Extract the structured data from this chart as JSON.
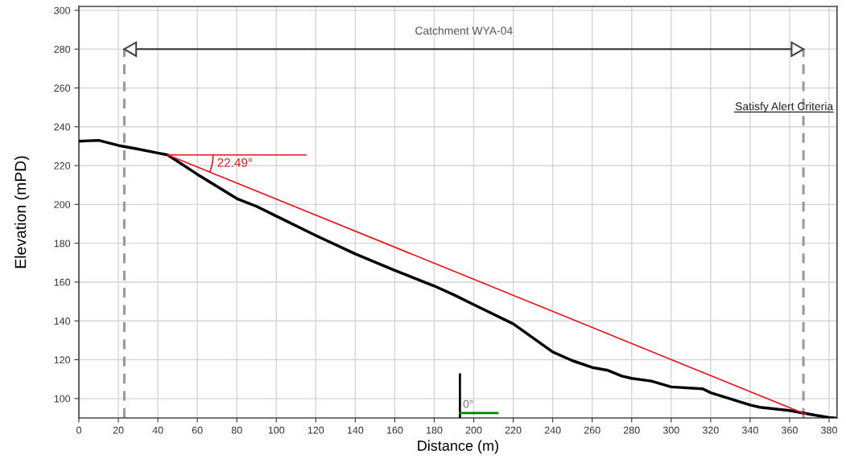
{
  "chart_data": {
    "type": "line",
    "xlabel": "Distance (m)",
    "ylabel": "Elevation (mPD)",
    "xlim": [
      0,
      384
    ],
    "ylim": [
      90,
      302
    ],
    "xticks": [
      0,
      20,
      40,
      60,
      80,
      100,
      120,
      140,
      160,
      180,
      200,
      220,
      240,
      260,
      280,
      300,
      320,
      340,
      360,
      380
    ],
    "yticks": [
      100,
      120,
      140,
      160,
      180,
      200,
      220,
      240,
      260,
      280,
      300
    ],
    "grid": true,
    "series": [
      {
        "color": "#000000",
        "x": [
          0,
          5,
          10,
          20,
          30,
          40,
          45,
          60,
          80,
          90,
          100,
          120,
          140,
          160,
          180,
          190,
          200,
          220,
          240,
          250,
          260,
          268,
          275,
          280,
          290,
          300,
          316,
          320,
          340,
          345,
          360,
          370,
          380,
          383
        ],
        "values": [
          232.5,
          232.8,
          233,
          230.4,
          228.5,
          226.5,
          225.5,
          215.5,
          203,
          199,
          194,
          184,
          174.5,
          166,
          158,
          153.4,
          148.4,
          138.5,
          124,
          119.5,
          116,
          114.5,
          111.6,
          110.4,
          109,
          106,
          105,
          103,
          96.7,
          95.5,
          93.8,
          92,
          90.2,
          90
        ]
      },
      {
        "color": "#e8141b",
        "x": [
          45,
          368
        ],
        "values": [
          225.5,
          92
        ]
      },
      {
        "color": "#e8141b",
        "x": [
          45,
          115
        ],
        "values": [
          225.5,
          225.5
        ]
      },
      {
        "color": "#000000",
        "x": [
          193,
          193
        ],
        "values": [
          90,
          112.4
        ]
      },
      {
        "color": "#008000",
        "x": [
          193,
          212
        ],
        "values": [
          92.5,
          92.5
        ]
      },
      {
        "color": "#444444",
        "x": [
          23,
          367
        ],
        "values": [
          280,
          280
        ]
      }
    ],
    "ref_lines": [
      {
        "axis": "x",
        "value": 23,
        "color": "#999999",
        "line_style": "dashed"
      },
      {
        "axis": "x",
        "value": 367,
        "color": "#999999",
        "line_style": "dashed"
      }
    ],
    "annotations": [
      "Catchment WYA-04",
      "22.49°",
      "0°",
      "Satisfy Alert Criteria"
    ]
  }
}
